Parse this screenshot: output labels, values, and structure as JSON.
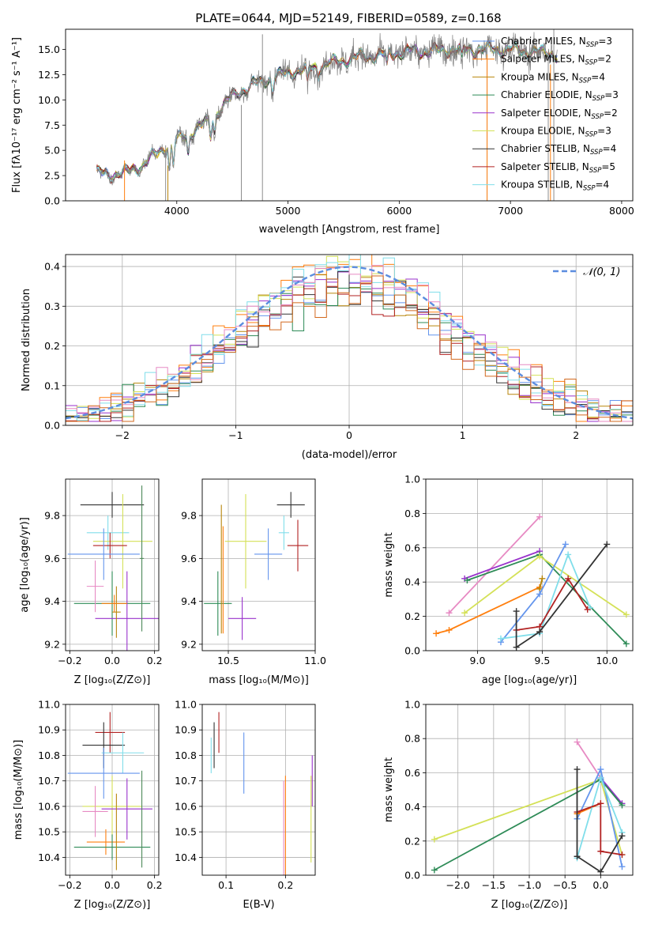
{
  "title": "PLATE=0644, MJD=52149, FIBERID=0589, z=0.168",
  "colors": {
    "Chabrier MILES": "#6495ed",
    "Salpeter MILES": "#ff7f0e",
    "Kroupa MILES": "#b8860b",
    "Chabrier ELODIE": "#2e8b57",
    "Salpeter ELODIE": "#9932cc",
    "Kroupa ELODIE": "#d4e157",
    "Chabrier STELIB": "#333333",
    "Salpeter STELIB": "#b22222",
    "Kroupa STELIB": "#80deea",
    "extra1": "#e78ac3",
    "extra2": "#d2691e",
    "extra3": "#4e8a5a"
  },
  "chart_data": [
    {
      "id": "spectrum",
      "type": "line",
      "title": "PLATE=0644, MJD=52149, FIBERID=0589, z=0.168",
      "xlabel": "wavelength [Angstrom, rest frame]",
      "ylabel": "Flux [fλ10⁻¹⁷ erg cm⁻² s⁻¹ A⁻¹]",
      "xlim": [
        3000,
        8100
      ],
      "ylim": [
        0,
        17
      ],
      "xticks": [
        "4000",
        "5000",
        "6000",
        "7000",
        "8000"
      ],
      "yticks": [
        "0.0",
        "2.5",
        "5.0",
        "7.5",
        "10.0",
        "12.5",
        "15.0"
      ],
      "data_range": [
        3280,
        7420
      ],
      "continuum": {
        "x": [
          3280,
          3500,
          3700,
          3900,
          4100,
          4300,
          4500,
          4700,
          5000,
          5300,
          5600,
          6000,
          6500,
          7000,
          7420
        ],
        "y": [
          2.7,
          2.6,
          3.6,
          5.4,
          6.6,
          8.0,
          10.4,
          11.6,
          12.7,
          13.4,
          14.2,
          14.7,
          15.0,
          15.0,
          14.5
        ]
      },
      "legend": [
        {
          "label": "Chabrier MILES, N",
          "sub": "SSP",
          "n": "=3"
        },
        {
          "label": "Salpeter MILES, N",
          "sub": "SSP",
          "n": "=2"
        },
        {
          "label": "Kroupa MILES, N",
          "sub": "SSP",
          "n": "=4"
        },
        {
          "label": "Chabrier ELODIE, N",
          "sub": "SSP",
          "n": "=3"
        },
        {
          "label": "Salpeter ELODIE, N",
          "sub": "SSP",
          "n": "=2"
        },
        {
          "label": "Kroupa ELODIE, N",
          "sub": "SSP",
          "n": "=3"
        },
        {
          "label": "Chabrier STELIB, N",
          "sub": "SSP",
          "n": "=4"
        },
        {
          "label": "Salpeter STELIB, N",
          "sub": "SSP",
          "n": "=5"
        },
        {
          "label": "Kroupa STELIB, N",
          "sub": "SSP",
          "n": "=4"
        }
      ]
    },
    {
      "id": "residuals",
      "type": "line",
      "xlabel": "(data-model)/error",
      "ylabel": "Normed distribution",
      "xlim": [
        -2.5,
        2.5
      ],
      "ylim": [
        0,
        0.43
      ],
      "xticks": [
        "−2",
        "−1",
        "0",
        "1",
        "2"
      ],
      "xtick_values": [
        -2,
        -1,
        0,
        1,
        2
      ],
      "yticks": [
        "0.0",
        "0.1",
        "0.2",
        "0.3",
        "0.4"
      ],
      "bin_width": 0.1,
      "legend": "𝒩(0, 1)"
    },
    {
      "id": "age_vs_Z",
      "type": "scatter",
      "xlabel": "Z [log₁₀(Z/Z⊙)]",
      "ylabel": "age  [log₁₀(age/yr)]",
      "xlim": [
        -0.22,
        0.22
      ],
      "ylim": [
        9.17,
        9.97
      ],
      "xticks": [
        "−0.2",
        "0.0",
        "0.2"
      ],
      "yticks": [
        "9.2",
        "9.4",
        "9.6",
        "9.8"
      ],
      "points": [
        {
          "c": "Chabrier STELIB",
          "x": 0.0,
          "y": 9.85,
          "xerr": 0.15,
          "yerr": 0.06
        },
        {
          "c": "Kroupa STELIB",
          "x": -0.02,
          "y": 9.72,
          "xerr": 0.1,
          "yerr": 0.08
        },
        {
          "c": "Kroupa ELODIE",
          "x": 0.05,
          "y": 9.68,
          "xerr": 0.14,
          "yerr": 0.22
        },
        {
          "c": "Salpeter STELIB",
          "x": -0.01,
          "y": 9.66,
          "xerr": 0.08,
          "yerr": 0.06
        },
        {
          "c": "Chabrier MILES",
          "x": -0.04,
          "y": 9.62,
          "xerr": 0.17,
          "yerr": 0.12
        },
        {
          "c": "Chabrier ELODIE",
          "x": 0.0,
          "y": 9.39,
          "xerr": 0.18,
          "yerr": 0.15
        },
        {
          "c": "Salpeter ELODIE",
          "x": 0.07,
          "y": 9.32,
          "xerr": 0.15,
          "yerr": 0.22
        },
        {
          "c": "extra1",
          "x": -0.08,
          "y": 9.47,
          "xerr": 0.04,
          "yerr": 0.12
        },
        {
          "c": "Kroupa MILES",
          "x": 0.02,
          "y": 9.35,
          "xerr": 0.02,
          "yerr": 0.12
        },
        {
          "c": "extra3",
          "x": 0.14,
          "y": 9.6,
          "xerr": 0.01,
          "yerr": 0.34
        },
        {
          "c": "Salpeter MILES",
          "x": 0.01,
          "y": 9.39,
          "xerr": 0.06,
          "yerr": 0.04
        }
      ]
    },
    {
      "id": "age_vs_mass",
      "type": "scatter",
      "xlabel": "mass [log₁₀(M/M⊙)]",
      "xlim": [
        10.35,
        11.0
      ],
      "ylim": [
        9.17,
        9.97
      ],
      "xticks": [
        "10.5",
        "11.0"
      ],
      "xtick_values": [
        10.5,
        11.0
      ],
      "yticks": [
        "9.2",
        "9.4",
        "9.6",
        "9.8"
      ],
      "points": [
        {
          "c": "Chabrier STELIB",
          "x": 10.86,
          "y": 9.85,
          "xerr": 0.08,
          "yerr": 0.06
        },
        {
          "c": "Kroupa STELIB",
          "x": 10.82,
          "y": 9.72,
          "xerr": 0.03,
          "yerr": 0.08
        },
        {
          "c": "Kroupa ELODIE",
          "x": 10.6,
          "y": 9.68,
          "xerr": 0.12,
          "yerr": 0.22
        },
        {
          "c": "Salpeter STELIB",
          "x": 10.9,
          "y": 9.66,
          "xerr": 0.06,
          "yerr": 0.12
        },
        {
          "c": "Chabrier MILES",
          "x": 10.73,
          "y": 9.62,
          "xerr": 0.08,
          "yerr": 0.12
        },
        {
          "c": "Chabrier ELODIE",
          "x": 10.44,
          "y": 9.39,
          "xerr": 0.08,
          "yerr": 0.15
        },
        {
          "c": "Salpeter ELODIE",
          "x": 10.58,
          "y": 9.32,
          "xerr": 0.08,
          "yerr": 0.1
        },
        {
          "c": "Kroupa MILES",
          "x": 10.46,
          "y": 9.55,
          "xerr": 0.0,
          "yerr": 0.3
        },
        {
          "c": "Salpeter MILES",
          "x": 10.47,
          "y": 9.5,
          "xerr": 0.0,
          "yerr": 0.25
        }
      ]
    },
    {
      "id": "weight_vs_age",
      "type": "line",
      "xlabel": "age  [log₁₀(age/yr)]",
      "ylabel": "mass weight",
      "xlim": [
        8.6,
        10.2
      ],
      "ylim": [
        0,
        1
      ],
      "xticks": [
        "9.0",
        "9.5",
        "10.0"
      ],
      "xtick_values": [
        9.0,
        9.5,
        10.0
      ],
      "yticks": [
        "0.0",
        "0.2",
        "0.4",
        "0.6",
        "0.8",
        "1.0"
      ],
      "series": [
        {
          "c": "extra1",
          "x": [
            8.78,
            9.48
          ],
          "y": [
            0.22,
            0.78
          ]
        },
        {
          "c": "Salpeter ELODIE",
          "x": [
            8.9,
            9.48
          ],
          "y": [
            0.42,
            0.58
          ]
        },
        {
          "c": "Chabrier ELODIE",
          "x": [
            8.92,
            9.48,
            10.15
          ],
          "y": [
            0.41,
            0.56,
            0.04
          ]
        },
        {
          "c": "Kroupa ELODIE",
          "x": [
            8.9,
            9.48,
            10.15
          ],
          "y": [
            0.22,
            0.55,
            0.21
          ]
        },
        {
          "c": "Salpeter MILES",
          "x": [
            8.68,
            8.78,
            9.48
          ],
          "y": [
            0.1,
            0.12,
            0.37
          ]
        },
        {
          "c": "Kroupa MILES",
          "x": [
            9.48,
            9.5
          ],
          "y": [
            0.36,
            0.42
          ]
        },
        {
          "c": "Chabrier MILES",
          "x": [
            9.18,
            9.48,
            9.68
          ],
          "y": [
            0.05,
            0.33,
            0.62
          ]
        },
        {
          "c": "Kroupa STELIB",
          "x": [
            9.18,
            9.48,
            9.7,
            9.87
          ],
          "y": [
            0.07,
            0.1,
            0.56,
            0.25
          ]
        },
        {
          "c": "Salpeter STELIB",
          "x": [
            9.3,
            9.48,
            9.7,
            9.85
          ],
          "y": [
            0.12,
            0.14,
            0.42,
            0.24
          ]
        },
        {
          "c": "Chabrier STELIB",
          "x": [
            9.3,
            9.3,
            9.48,
            10.0
          ],
          "y": [
            0.23,
            0.02,
            0.11,
            0.62
          ]
        }
      ]
    },
    {
      "id": "mass_vs_Z",
      "type": "scatter",
      "xlabel": "Z [log₁₀(Z/Z⊙)]",
      "ylabel": "mass [log₁₀(M/M⊙)]",
      "xlim": [
        -0.22,
        0.22
      ],
      "ylim": [
        10.33,
        11.0
      ],
      "xticks": [
        "−0.2",
        "0.0",
        "0.2"
      ],
      "yticks": [
        "10.4",
        "10.5",
        "10.6",
        "10.7",
        "10.8",
        "10.9",
        "11.0"
      ],
      "points": [
        {
          "c": "Salpeter STELIB",
          "x": -0.01,
          "y": 10.89,
          "xerr": 0.07,
          "yerr": 0.08
        },
        {
          "c": "Chabrier STELIB",
          "x": -0.04,
          "y": 10.84,
          "xerr": 0.1,
          "yerr": 0.09
        },
        {
          "c": "Kroupa STELIB",
          "x": 0.05,
          "y": 10.81,
          "xerr": 0.1,
          "yerr": 0.08
        },
        {
          "c": "Chabrier MILES",
          "x": -0.04,
          "y": 10.73,
          "xerr": 0.17,
          "yerr": 0.1
        },
        {
          "c": "Kroupa ELODIE",
          "x": 0.0,
          "y": 10.6,
          "xerr": 0.14,
          "yerr": 0.12
        },
        {
          "c": "Salpeter ELODIE",
          "x": 0.07,
          "y": 10.59,
          "xerr": 0.12,
          "yerr": 0.12
        },
        {
          "c": "extra1",
          "x": -0.08,
          "y": 10.58,
          "xerr": 0.06,
          "yerr": 0.1
        },
        {
          "c": "Salpeter MILES",
          "x": -0.03,
          "y": 10.46,
          "xerr": 0.09,
          "yerr": 0.05
        },
        {
          "c": "Chabrier ELODIE",
          "x": 0.0,
          "y": 10.44,
          "xerr": 0.18,
          "yerr": 0.05
        },
        {
          "c": "extra3",
          "x": 0.14,
          "y": 10.55,
          "xerr": 0.0,
          "yerr": 0.19
        },
        {
          "c": "Kroupa MILES",
          "x": 0.02,
          "y": 10.5,
          "xerr": 0.0,
          "yerr": 0.15
        }
      ]
    },
    {
      "id": "mass_vs_ebv",
      "type": "scatter",
      "xlabel": "E(B-V)",
      "xlim": [
        0.06,
        0.25
      ],
      "ylim": [
        10.33,
        11.0
      ],
      "xticks": [
        "0.1",
        "0.2"
      ],
      "xtick_values": [
        0.1,
        0.2
      ],
      "yticks": [
        "10.4",
        "10.5",
        "10.6",
        "10.7",
        "10.8",
        "10.9",
        "11.0"
      ],
      "points": [
        {
          "c": "Salpeter STELIB",
          "x": 0.088,
          "y": 10.89,
          "yerr": 0.08
        },
        {
          "c": "Chabrier STELIB",
          "x": 0.08,
          "y": 10.84,
          "yerr": 0.09
        },
        {
          "c": "Kroupa STELIB",
          "x": 0.075,
          "y": 10.8,
          "yerr": 0.07
        },
        {
          "c": "Chabrier MILES",
          "x": 0.13,
          "y": 10.77,
          "yerr": 0.12
        },
        {
          "c": "Salpeter ELODIE",
          "x": 0.245,
          "y": 10.7,
          "yerr": 0.1
        },
        {
          "c": "Salpeter MILES",
          "x": 0.2,
          "y": 10.5,
          "yerr": 0.22
        },
        {
          "c": "extra1",
          "x": 0.197,
          "y": 10.5,
          "yerr": 0.2
        },
        {
          "c": "Kroupa ELODIE",
          "x": 0.243,
          "y": 10.55,
          "yerr": 0.17
        }
      ]
    },
    {
      "id": "weight_vs_Z",
      "type": "line",
      "xlabel": "Z [log₁₀(Z/Z⊙)]",
      "ylabel": "mass weight",
      "xlim": [
        -2.45,
        0.45
      ],
      "ylim": [
        0,
        1
      ],
      "xticks": [
        "−2.0",
        "−1.5",
        "−1.0",
        "−0.5",
        "0.0"
      ],
      "xtick_values": [
        -2.0,
        -1.5,
        -1.0,
        -0.5,
        0.0
      ],
      "yticks": [
        "0.0",
        "0.2",
        "0.4",
        "0.6",
        "0.8",
        "1.0"
      ],
      "series": [
        {
          "c": "extra1",
          "x": [
            -0.33,
            0.0
          ],
          "y": [
            0.78,
            0.57
          ]
        },
        {
          "c": "Salpeter ELODIE",
          "x": [
            0.0,
            0.3
          ],
          "y": [
            0.57,
            0.42
          ]
        },
        {
          "c": "Kroupa ELODIE",
          "x": [
            -2.33,
            0.0,
            0.3
          ],
          "y": [
            0.21,
            0.56,
            0.12
          ]
        },
        {
          "c": "Chabrier ELODIE",
          "x": [
            -2.33,
            0.0,
            0.3
          ],
          "y": [
            0.03,
            0.56,
            0.41
          ]
        },
        {
          "c": "Chabrier MILES",
          "x": [
            -0.33,
            0.0,
            0.3
          ],
          "y": [
            0.33,
            0.62,
            0.05
          ]
        },
        {
          "c": "Salpeter MILES",
          "x": [
            -0.33,
            0.0
          ],
          "y": [
            0.36,
            0.42
          ]
        },
        {
          "c": "Kroupa STELIB",
          "x": [
            -0.33,
            0.0,
            0.3
          ],
          "y": [
            0.1,
            0.57,
            0.25
          ]
        },
        {
          "c": "Salpeter STELIB",
          "x": [
            -0.33,
            0.0,
            0.0,
            0.3
          ],
          "y": [
            0.37,
            0.42,
            0.14,
            0.12
          ]
        },
        {
          "c": "Chabrier STELIB",
          "x": [
            -0.33,
            -0.33,
            0.0,
            0.3
          ],
          "y": [
            0.62,
            0.11,
            0.02,
            0.23
          ]
        }
      ]
    }
  ]
}
